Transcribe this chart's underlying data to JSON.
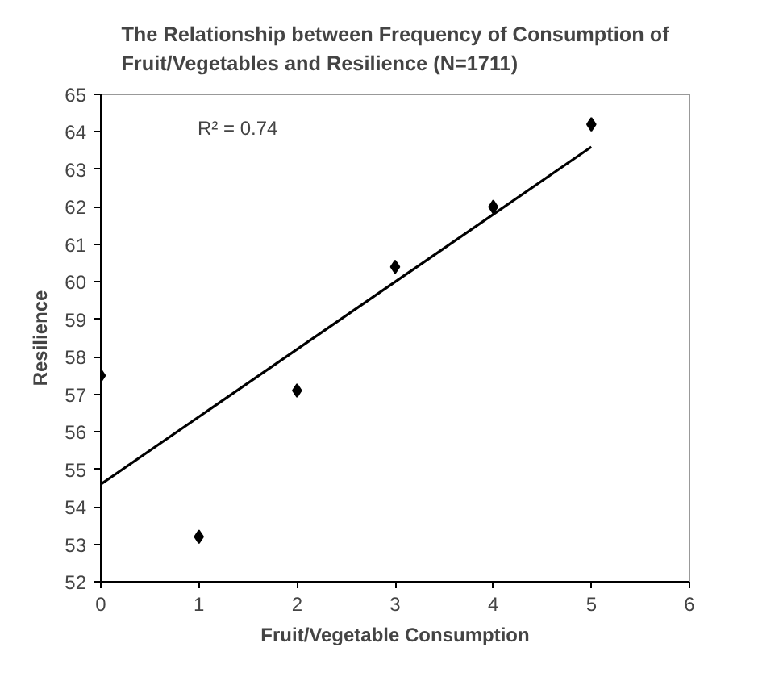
{
  "chart_data": {
    "type": "scatter",
    "title": "The Relationship between Frequency of Consumption of\nFruit/Vegetables and Resilience (N=1711)",
    "xlabel": "Fruit/Vegetable Consumption",
    "ylabel": "Resilience",
    "marker": "diamond",
    "grid": false,
    "xlim": [
      0,
      6
    ],
    "xticks": [
      0,
      1,
      2,
      3,
      4,
      5,
      6
    ],
    "ylim": [
      52,
      65
    ],
    "yticks": [
      52,
      53,
      54,
      55,
      56,
      57,
      58,
      59,
      60,
      61,
      62,
      63,
      64,
      65
    ],
    "annotations": [
      "R² = 0.74"
    ],
    "series": [
      {
        "color": "#000000",
        "x": [
          0,
          1,
          2,
          3,
          4,
          5
        ],
        "values": [
          57.5,
          53.2,
          57.1,
          60.4,
          62.0,
          64.2
        ]
      },
      {
        "type": "line",
        "color": "#000000",
        "x": [
          0,
          5
        ],
        "values": [
          54.6,
          63.6
        ],
        "line_style": "solid",
        "marker": "none"
      }
    ]
  }
}
